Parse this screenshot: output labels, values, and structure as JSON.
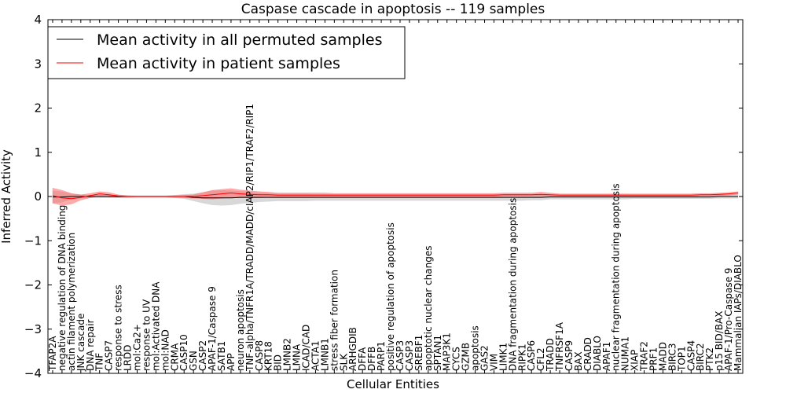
{
  "chart_data": {
    "type": "line",
    "title": "Caspase cascade in apoptosis -- 119 samples",
    "xlabel": "Cellular Entities",
    "ylabel": "Inferred Activity",
    "ylim": [
      -4,
      4
    ],
    "yticks": [
      -4,
      -3,
      -2,
      -1,
      0,
      1,
      2,
      3,
      4
    ],
    "ytick_labels": [
      "−4",
      "−3",
      "−2",
      "−1",
      "0",
      "1",
      "2",
      "3",
      "4"
    ],
    "legend": {
      "placement": "top-left",
      "entries": [
        {
          "label": "Mean activity in all permuted samples",
          "color": "#000000"
        },
        {
          "label": "Mean activity in patient samples",
          "color": "#ff0000"
        }
      ]
    },
    "colors": {
      "permuted_line": "#000000",
      "patient_line": "#ff0000",
      "permuted_band": "#c8c8c8",
      "patient_band": "#ff6666"
    },
    "categories": [
      "TFAP2A",
      "negative regulation of DNA binding",
      "actin filament polymerization",
      "JNK cascade",
      "DNA repair",
      "TNF",
      "CASP7",
      "response to stress",
      "LRDD",
      "mol:Ca2+",
      "response to UV",
      "mol:Activated DNA",
      "mol:NAD",
      "CRMA",
      "CASP10",
      "GSN",
      "CASP2",
      "APAF-1/Caspase 9",
      "SATB1",
      "APP",
      "neuron apoptosis",
      "TNF-alpha/TNFR1A/TRADD/MADD/cIAP2/RIP1/TRAF2/RIP1",
      "CASP8",
      "KRT18",
      "BID",
      "LMNB2",
      "LMNA",
      "ICAD/CAD",
      "ACTA1",
      "LMNB1",
      "stress fiber formation",
      "SLK",
      "ARHGDIB",
      "DFFA",
      "DFFB",
      "PARP1",
      "positive regulation of apoptosis",
      "CASP3",
      "CASP3",
      "SREBF1",
      "apoptotic nuclear changes",
      "SPTAN1",
      "MAP3K1",
      "CYCS",
      "GZMB",
      "apoptosis",
      "GAS2",
      "VIM",
      "LIMK1",
      "DNA fragmentation during apoptosis",
      "RIPK1",
      "CASP6",
      "CFL2",
      "TRADD",
      "TNFRSF1A",
      "CASP9",
      "BAX",
      "CRADD",
      "DIABLO",
      "APAF1",
      "nuclear fragmentation during apoptosis",
      "NUMA1",
      "XIAP",
      "TRAF2",
      "PRF1",
      "MADD",
      "BIRC3",
      "TOP1",
      "CASP4",
      "BIRC2",
      "PTK2",
      "p15 BID/BAX",
      "APAF-1/Pro-Caspase 9",
      "Mammalian IAPs/DIABLO"
    ],
    "series": [
      {
        "name": "Mean activity in all permuted samples",
        "values": [
          -0.01,
          -0.01,
          0.0,
          0.0,
          0.0,
          0.0,
          0.0,
          0.0,
          0.0,
          0.0,
          0.0,
          0.0,
          0.0,
          0.0,
          0.0,
          -0.02,
          -0.03,
          -0.03,
          -0.03,
          -0.03,
          -0.02,
          -0.02,
          -0.02,
          -0.02,
          -0.02,
          -0.02,
          -0.02,
          -0.02,
          -0.02,
          -0.02,
          -0.02,
          -0.02,
          -0.02,
          -0.02,
          -0.02,
          -0.02,
          -0.02,
          -0.02,
          -0.02,
          -0.02,
          -0.02,
          -0.02,
          -0.02,
          -0.02,
          -0.02,
          -0.02,
          -0.02,
          -0.02,
          -0.02,
          -0.02,
          -0.02,
          -0.02,
          -0.02,
          -0.01,
          -0.01,
          -0.01,
          -0.01,
          -0.01,
          -0.01,
          -0.01,
          -0.01,
          -0.01,
          -0.01,
          -0.01,
          -0.01,
          -0.01,
          -0.01,
          -0.01,
          -0.01,
          -0.01,
          -0.01,
          0.0,
          0.0,
          0.0
        ],
        "spread": [
          0.14,
          0.12,
          0.06,
          0.04,
          0.03,
          0.03,
          0.03,
          0.03,
          0.02,
          0.02,
          0.02,
          0.02,
          0.02,
          0.03,
          0.05,
          0.08,
          0.12,
          0.16,
          0.17,
          0.16,
          0.14,
          0.12,
          0.1,
          0.09,
          0.08,
          0.08,
          0.08,
          0.08,
          0.07,
          0.07,
          0.07,
          0.07,
          0.07,
          0.07,
          0.07,
          0.07,
          0.07,
          0.07,
          0.07,
          0.07,
          0.07,
          0.07,
          0.07,
          0.07,
          0.07,
          0.07,
          0.07,
          0.07,
          0.07,
          0.07,
          0.07,
          0.06,
          0.06,
          0.05,
          0.05,
          0.05,
          0.05,
          0.05,
          0.05,
          0.05,
          0.05,
          0.05,
          0.04,
          0.04,
          0.04,
          0.04,
          0.04,
          0.04,
          0.04,
          0.04,
          0.04,
          0.04,
          0.04,
          0.04
        ]
      },
      {
        "name": "Mean activity in patient samples",
        "values": [
          0.02,
          -0.03,
          -0.05,
          -0.02,
          0.02,
          0.06,
          0.04,
          0.01,
          0.0,
          0.0,
          0.0,
          0.0,
          0.0,
          0.0,
          0.0,
          0.0,
          0.02,
          0.04,
          0.06,
          0.08,
          0.06,
          0.05,
          0.04,
          0.04,
          0.03,
          0.03,
          0.03,
          0.03,
          0.03,
          0.03,
          0.03,
          0.03,
          0.03,
          0.03,
          0.03,
          0.03,
          0.03,
          0.03,
          0.03,
          0.03,
          0.03,
          0.03,
          0.03,
          0.03,
          0.03,
          0.03,
          0.03,
          0.03,
          0.04,
          0.04,
          0.04,
          0.04,
          0.05,
          0.04,
          0.03,
          0.03,
          0.03,
          0.03,
          0.03,
          0.03,
          0.03,
          0.03,
          0.03,
          0.03,
          0.03,
          0.03,
          0.03,
          0.03,
          0.03,
          0.04,
          0.04,
          0.05,
          0.06,
          0.08
        ],
        "spread": [
          0.17,
          0.17,
          0.12,
          0.06,
          0.05,
          0.05,
          0.05,
          0.03,
          0.02,
          0.01,
          0.01,
          0.01,
          0.01,
          0.02,
          0.03,
          0.04,
          0.07,
          0.1,
          0.1,
          0.1,
          0.09,
          0.08,
          0.07,
          0.06,
          0.05,
          0.05,
          0.05,
          0.05,
          0.05,
          0.05,
          0.04,
          0.04,
          0.04,
          0.04,
          0.04,
          0.04,
          0.04,
          0.04,
          0.04,
          0.04,
          0.04,
          0.04,
          0.04,
          0.04,
          0.04,
          0.04,
          0.04,
          0.04,
          0.04,
          0.04,
          0.04,
          0.04,
          0.05,
          0.04,
          0.03,
          0.03,
          0.03,
          0.03,
          0.03,
          0.03,
          0.03,
          0.03,
          0.03,
          0.03,
          0.03,
          0.03,
          0.03,
          0.03,
          0.03,
          0.03,
          0.03,
          0.03,
          0.03,
          0.03
        ]
      }
    ]
  }
}
